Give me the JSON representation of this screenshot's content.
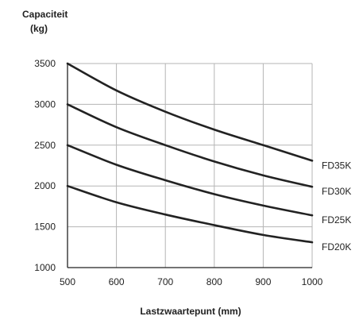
{
  "chart_data": {
    "type": "line",
    "ylabel_lines": [
      "Capaciteit",
      "(kg)"
    ],
    "xlabel": "Lastzwaartepunt (mm)",
    "x": [
      500,
      600,
      700,
      800,
      900,
      1000
    ],
    "xlim": [
      500,
      1000
    ],
    "ylim": [
      1000,
      3500
    ],
    "x_ticks": [
      "500",
      "600",
      "700",
      "800",
      "900",
      "1000"
    ],
    "y_ticks": [
      "1000",
      "1500",
      "2000",
      "2500",
      "3000",
      "3500"
    ],
    "grid": true,
    "series": [
      {
        "name": "FD35K",
        "values": [
          3500,
          3170,
          2910,
          2690,
          2500,
          2310
        ]
      },
      {
        "name": "FD30K",
        "values": [
          3000,
          2720,
          2500,
          2300,
          2130,
          1990
        ]
      },
      {
        "name": "FD25K",
        "values": [
          2500,
          2260,
          2070,
          1900,
          1760,
          1640
        ]
      },
      {
        "name": "FD20K",
        "values": [
          2000,
          1800,
          1650,
          1520,
          1400,
          1310
        ]
      }
    ],
    "colors": {
      "line": "#222222",
      "grid": "#b5b5b5"
    }
  }
}
